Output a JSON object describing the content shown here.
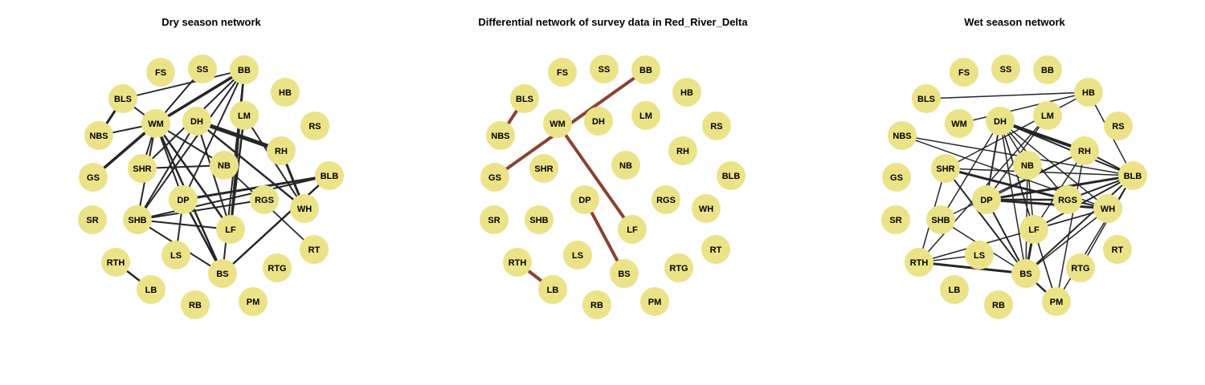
{
  "figure": {
    "node_color": "#ebe388",
    "edge_color": "#262626",
    "diff_edge_color": "#8b4230",
    "nodes": [
      "FS",
      "SS",
      "BB",
      "HB",
      "BLS",
      "WM",
      "DH",
      "LM",
      "RS",
      "NBS",
      "RH",
      "GS",
      "SHR",
      "NB",
      "BLB",
      "DP",
      "RGS",
      "WH",
      "SR",
      "SHB",
      "LF",
      "RT",
      "RTH",
      "LS",
      "BS",
      "RTG",
      "LB",
      "RB",
      "PM"
    ],
    "panels": [
      {
        "id": "dry",
        "title": "Dry season network",
        "edges": [
          {
            "from": "BLS",
            "to": "BB",
            "w": 1.8
          },
          {
            "from": "BLS",
            "to": "NBS",
            "w": 3
          },
          {
            "from": "BLS",
            "to": "WM",
            "w": 2
          },
          {
            "from": "WM",
            "to": "SS",
            "w": 2
          },
          {
            "from": "WM",
            "to": "BB",
            "w": 3.5
          },
          {
            "from": "WM",
            "to": "NBS",
            "w": 2
          },
          {
            "from": "WM",
            "to": "GS",
            "w": 3.5
          },
          {
            "from": "WM",
            "to": "SHR",
            "w": 2
          },
          {
            "from": "WM",
            "to": "SHB",
            "w": 2
          },
          {
            "from": "WM",
            "to": "DP",
            "w": 2
          },
          {
            "from": "WM",
            "to": "LF",
            "w": 2.5
          },
          {
            "from": "WM",
            "to": "BS",
            "w": 2.5
          },
          {
            "from": "WM",
            "to": "NB",
            "w": 2
          },
          {
            "from": "BB",
            "to": "SHR",
            "w": 2
          },
          {
            "from": "BB",
            "to": "DP",
            "w": 2
          },
          {
            "from": "BB",
            "to": "SHB",
            "w": 2
          },
          {
            "from": "BB",
            "to": "LF",
            "w": 2.5
          },
          {
            "from": "BB",
            "to": "BS",
            "w": 2
          },
          {
            "from": "DH",
            "to": "RH",
            "w": 5
          },
          {
            "from": "DH",
            "to": "WH",
            "w": 2.5
          },
          {
            "from": "DH",
            "to": "SHB",
            "w": 2
          },
          {
            "from": "DH",
            "to": "LF",
            "w": 2
          },
          {
            "from": "LM",
            "to": "WH",
            "w": 2
          },
          {
            "from": "LM",
            "to": "LF",
            "w": 2.5
          },
          {
            "from": "RH",
            "to": "WH",
            "w": 3
          },
          {
            "from": "SHR",
            "to": "NB",
            "w": 2
          },
          {
            "from": "NB",
            "to": "RT",
            "w": 1.8
          },
          {
            "from": "SHB",
            "to": "BLB",
            "w": 2
          },
          {
            "from": "SHB",
            "to": "RGS",
            "w": 2
          },
          {
            "from": "SHB",
            "to": "LF",
            "w": 2
          },
          {
            "from": "SHB",
            "to": "BS",
            "w": 2
          },
          {
            "from": "DP",
            "to": "BLB",
            "w": 3
          },
          {
            "from": "DP",
            "to": "BS",
            "w": 2.5
          },
          {
            "from": "DP",
            "to": "LS",
            "w": 2
          },
          {
            "from": "BLB",
            "to": "BS",
            "w": 2.5
          },
          {
            "from": "RTH",
            "to": "LB",
            "w": 2.5
          }
        ]
      },
      {
        "id": "diff",
        "title": "Differential network of survey data in Red_River_Delta",
        "edges": [
          {
            "from": "BLS",
            "to": "NBS",
            "w": 4
          },
          {
            "from": "GS",
            "to": "BB",
            "w": 4
          },
          {
            "from": "WM",
            "to": "LF",
            "w": 4
          },
          {
            "from": "DP",
            "to": "BS",
            "w": 4
          },
          {
            "from": "RTH",
            "to": "LB",
            "w": 4
          }
        ]
      },
      {
        "id": "wet",
        "title": "Wet season network",
        "edges": [
          {
            "from": "BLS",
            "to": "HB",
            "w": 1.5
          },
          {
            "from": "WM",
            "to": "HB",
            "w": 1.5
          },
          {
            "from": "DH",
            "to": "RH",
            "w": 4
          },
          {
            "from": "DH",
            "to": "BLB",
            "w": 2
          },
          {
            "from": "DH",
            "to": "DP",
            "w": 2
          },
          {
            "from": "DH",
            "to": "SHB",
            "w": 1.5
          },
          {
            "from": "DH",
            "to": "LF",
            "w": 1.5
          },
          {
            "from": "DH",
            "to": "BS",
            "w": 1.5
          },
          {
            "from": "DH",
            "to": "WH",
            "w": 1.5
          },
          {
            "from": "DH",
            "to": "RGS",
            "w": 1.5
          },
          {
            "from": "DH",
            "to": "NB",
            "w": 1.5
          },
          {
            "from": "DH",
            "to": "PM",
            "w": 1.5
          },
          {
            "from": "LM",
            "to": "DP",
            "w": 1.5
          },
          {
            "from": "LM",
            "to": "RTH",
            "w": 1.5
          },
          {
            "from": "HB",
            "to": "BLB",
            "w": 1.5
          },
          {
            "from": "HB",
            "to": "SHR",
            "w": 1.5
          },
          {
            "from": "RH",
            "to": "DP",
            "w": 1.5
          },
          {
            "from": "RH",
            "to": "BLB",
            "w": 2
          },
          {
            "from": "RH",
            "to": "LF",
            "w": 1.5
          },
          {
            "from": "RH",
            "to": "SHB",
            "w": 1.5
          },
          {
            "from": "RH",
            "to": "PM",
            "w": 1.5
          },
          {
            "from": "NBS",
            "to": "BLB",
            "w": 1.5
          },
          {
            "from": "NBS",
            "to": "WH",
            "w": 1.5
          },
          {
            "from": "SHR",
            "to": "RGS",
            "w": 3
          },
          {
            "from": "SHR",
            "to": "BLB",
            "w": 1.5
          },
          {
            "from": "SHR",
            "to": "BS",
            "w": 2
          },
          {
            "from": "SHR",
            "to": "RTH",
            "w": 1.5
          },
          {
            "from": "NB",
            "to": "BS",
            "w": 1.5
          },
          {
            "from": "NB",
            "to": "LF",
            "w": 1.5
          },
          {
            "from": "DP",
            "to": "BLB",
            "w": 3
          },
          {
            "from": "DP",
            "to": "RGS",
            "w": 2.5
          },
          {
            "from": "DP",
            "to": "WH",
            "w": 3
          },
          {
            "from": "DP",
            "to": "BS",
            "w": 2
          },
          {
            "from": "RGS",
            "to": "BLB",
            "w": 2
          },
          {
            "from": "RGS",
            "to": "WH",
            "w": 2
          },
          {
            "from": "BLB",
            "to": "LF",
            "w": 2
          },
          {
            "from": "BLB",
            "to": "BS",
            "w": 2
          },
          {
            "from": "BLB",
            "to": "PM",
            "w": 1.5
          },
          {
            "from": "BLB",
            "to": "RTG",
            "w": 1.5
          },
          {
            "from": "WH",
            "to": "RTH",
            "w": 1.5
          },
          {
            "from": "WH",
            "to": "LF",
            "w": 1.5
          },
          {
            "from": "WH",
            "to": "BS",
            "w": 1.5
          },
          {
            "from": "LF",
            "to": "BS",
            "w": 3
          },
          {
            "from": "LF",
            "to": "PM",
            "w": 1.5
          },
          {
            "from": "SHB",
            "to": "BS",
            "w": 1.5
          },
          {
            "from": "RTH",
            "to": "BS",
            "w": 3
          },
          {
            "from": "RTH",
            "to": "LS",
            "w": 1.5
          },
          {
            "from": "BS",
            "to": "PM",
            "w": 2.5
          }
        ]
      }
    ]
  }
}
